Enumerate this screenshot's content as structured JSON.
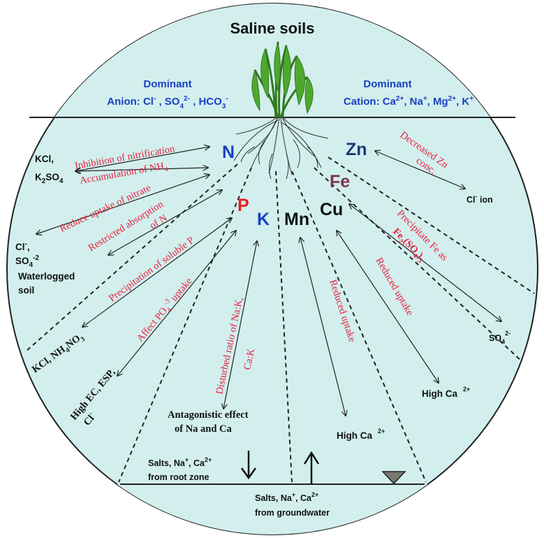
{
  "title": "Saline soils",
  "colors": {
    "circle_fill": "#d2efee",
    "label_blue": "#1a3fc4",
    "label_red": "#e8203c",
    "element_N": "#1a3fc4",
    "element_P": "#e81c1c",
    "element_K": "#1a3fc4",
    "element_Zn": "#1a3a7a",
    "element_Fe": "#7a3350",
    "element_Mn": "#111111",
    "element_Cu": "#111111"
  },
  "dominant_anion": {
    "heading": "Dominant",
    "line_prefix": "Anion: Cl",
    "ions": [
      "Cl⁻",
      "SO₄²⁻",
      "HCO₃⁻"
    ]
  },
  "dominant_cation": {
    "heading": "Dominant",
    "line_prefix": "Cation:",
    "ions": [
      "Ca²⁺",
      "Na⁺",
      "Mg²⁺",
      "K⁺"
    ]
  },
  "elements": {
    "N": "N",
    "P": "P",
    "K": "K",
    "Mn": "Mn",
    "Cu": "Cu",
    "Fe": "Fe",
    "Zn": "Zn"
  },
  "effects": {
    "inhibition_nitrification": "Inhibition of nitrification",
    "accumulation_nh4": "Accumulation of NH",
    "reduce_uptake_nitrate": "Reduce uptake of nitrate",
    "restricted_absorption_1": "Restricted absorption",
    "restricted_absorption_2": "of N",
    "precipitation_soluble_p": "Precipitation of soluble P",
    "affect_po4_uptake": "Affect PO",
    "affect_po4_uptake_tail": " uptake",
    "disturbed_ratio_1": "Disturbed ratio of Na:K,",
    "disturbed_ratio_2": "Ca:K",
    "reduced_uptake_mn": "Reduced uptake",
    "reduced_uptake_cu": "Reduced uptake",
    "precipitate_fe_1": "Precipitate Fe as",
    "precipitate_fe_2": "Fe",
    "decreased_zn_1": "Decreased Zn",
    "decreased_zn_2": "conc."
  },
  "causes": {
    "kcl_k2so4_1": "KCl,",
    "kcl_k2so4_2": "K",
    "kcl_k2so4_2b": "SO",
    "cl_so4_1": "Cl",
    "cl_so4_2": "SO",
    "waterlogged_1": "Waterlogged",
    "waterlogged_2": "soil",
    "kcl_nh4no3": "KCl, NH",
    "kcl_nh4no3_b": "NO",
    "high_ec_esp": "High EC, ESP,",
    "high_ec_cl": "Cl",
    "antagonistic_1": "Antagonistic effect",
    "antagonistic_2": "of Na and Ca",
    "high_ca_mn": "High Ca",
    "high_ca_cu": "High Ca",
    "so4_fe": "SO",
    "cl_ion": "Cl",
    "cl_ion_tail": " ion"
  },
  "bottom": {
    "root_zone_1": "Salts, Na",
    "root_zone_1b": ", Ca",
    "root_zone_2": "from root zone",
    "groundwater_1": "Salts, Na",
    "groundwater_1b": ", Ca",
    "groundwater_2": "from groundwater"
  }
}
